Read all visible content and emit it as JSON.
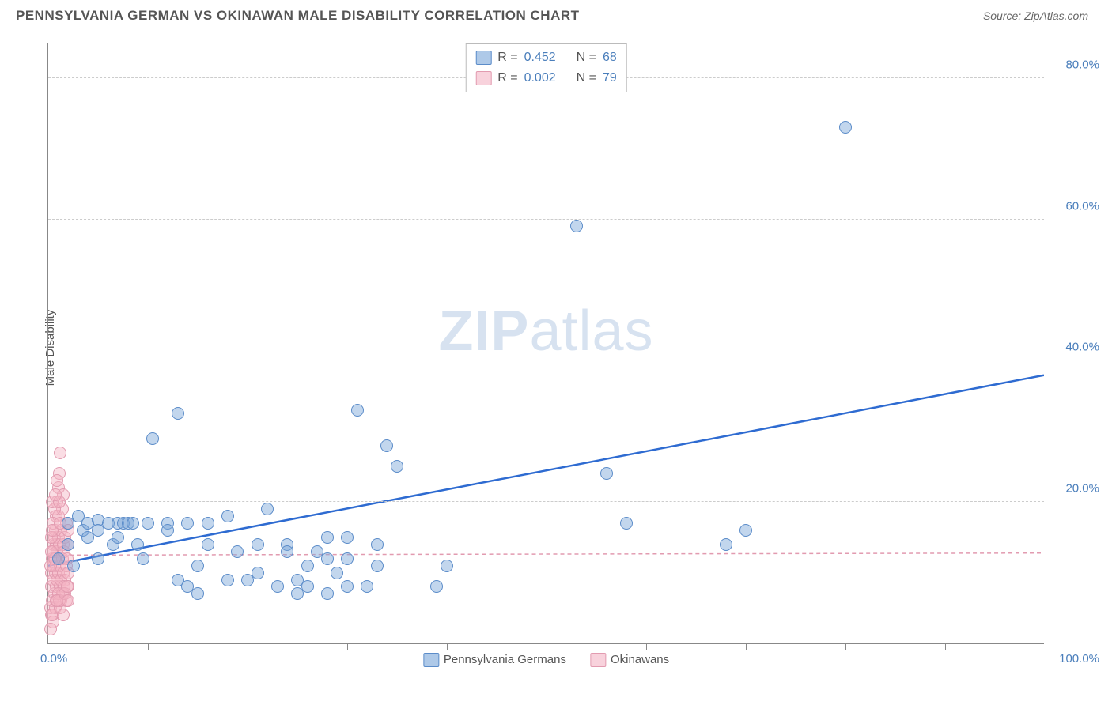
{
  "header": {
    "title": "PENNSYLVANIA GERMAN VS OKINAWAN MALE DISABILITY CORRELATION CHART",
    "source": "Source: ZipAtlas.com"
  },
  "chart": {
    "type": "scatter",
    "ylabel": "Male Disability",
    "watermark_zip": "ZIP",
    "watermark_rest": "atlas",
    "xlim": [
      0,
      100
    ],
    "ylim": [
      0,
      85
    ],
    "xtick_positions": [
      10,
      20,
      30,
      40,
      50,
      60,
      70,
      80,
      90
    ],
    "ytick_labels": [
      {
        "v": 20,
        "label": "20.0%"
      },
      {
        "v": 40,
        "label": "40.0%"
      },
      {
        "v": 60,
        "label": "60.0%"
      },
      {
        "v": 80,
        "label": "80.0%"
      }
    ],
    "x_start_label": "0.0%",
    "x_end_label": "100.0%",
    "grid_color": "#cccccc",
    "background_color": "#ffffff",
    "marker_radius": 8,
    "series": {
      "blue": {
        "name": "Pennsylvania Germans",
        "color_fill": "rgba(120,165,216,0.45)",
        "color_stroke": "#5b8cc9",
        "trend": {
          "x1": 0,
          "y1": 11,
          "x2": 100,
          "y2": 38,
          "stroke": "#2e6bd1",
          "width": 2.5,
          "dash": "none"
        },
        "R": "0.452",
        "N": "68",
        "points": [
          [
            1,
            12
          ],
          [
            2,
            17
          ],
          [
            2,
            14
          ],
          [
            2.5,
            11
          ],
          [
            3,
            18
          ],
          [
            3.5,
            16
          ],
          [
            4,
            17
          ],
          [
            4,
            15
          ],
          [
            5,
            17.5
          ],
          [
            5,
            16
          ],
          [
            5,
            12
          ],
          [
            6,
            17
          ],
          [
            6.5,
            14
          ],
          [
            7,
            17
          ],
          [
            7,
            15
          ],
          [
            7.5,
            17
          ],
          [
            8,
            17
          ],
          [
            8.5,
            17
          ],
          [
            9,
            14
          ],
          [
            9.5,
            12
          ],
          [
            10,
            17
          ],
          [
            10.5,
            29
          ],
          [
            12,
            17
          ],
          [
            12,
            16
          ],
          [
            13,
            9
          ],
          [
            13,
            32.5
          ],
          [
            14,
            17
          ],
          [
            14,
            8
          ],
          [
            15,
            11
          ],
          [
            15,
            7
          ],
          [
            16,
            17
          ],
          [
            16,
            14
          ],
          [
            18,
            9
          ],
          [
            18,
            18
          ],
          [
            19,
            13
          ],
          [
            20,
            9
          ],
          [
            21,
            14
          ],
          [
            21,
            10
          ],
          [
            22,
            19
          ],
          [
            23,
            8
          ],
          [
            24,
            14
          ],
          [
            24,
            13
          ],
          [
            25,
            9
          ],
          [
            25,
            7
          ],
          [
            26,
            11
          ],
          [
            26,
            8
          ],
          [
            27,
            13
          ],
          [
            28,
            7
          ],
          [
            28,
            12
          ],
          [
            28,
            15
          ],
          [
            29,
            10
          ],
          [
            30,
            8
          ],
          [
            30,
            12
          ],
          [
            30,
            15
          ],
          [
            31,
            33
          ],
          [
            32,
            8
          ],
          [
            33,
            14
          ],
          [
            33,
            11
          ],
          [
            34,
            28
          ],
          [
            35,
            25
          ],
          [
            39,
            8
          ],
          [
            40,
            11
          ],
          [
            53,
            59
          ],
          [
            56,
            24
          ],
          [
            58,
            17
          ],
          [
            68,
            14
          ],
          [
            70,
            16
          ],
          [
            80,
            73
          ]
        ]
      },
      "pink": {
        "name": "Okinawans",
        "color_fill": "rgba(244,180,196,0.45)",
        "color_stroke": "#e29bb0",
        "trend": {
          "x1": 0,
          "y1": 12.5,
          "x2": 100,
          "y2": 12.8,
          "stroke": "#e29bb0",
          "width": 1.5,
          "dash": "5,4"
        },
        "R": "0.002",
        "N": "79",
        "points": [
          [
            0.2,
            5
          ],
          [
            0.3,
            8
          ],
          [
            0.3,
            10
          ],
          [
            0.4,
            12
          ],
          [
            0.4,
            6
          ],
          [
            0.5,
            14
          ],
          [
            0.5,
            9
          ],
          [
            0.5,
            11
          ],
          [
            0.5,
            13
          ],
          [
            0.6,
            15
          ],
          [
            0.6,
            7
          ],
          [
            0.7,
            16
          ],
          [
            0.7,
            10
          ],
          [
            0.7,
            12
          ],
          [
            0.8,
            18
          ],
          [
            0.8,
            14
          ],
          [
            0.8,
            8
          ],
          [
            0.8,
            11
          ],
          [
            0.9,
            20
          ],
          [
            0.9,
            13
          ],
          [
            0.9,
            9
          ],
          [
            1,
            22
          ],
          [
            1,
            15
          ],
          [
            1,
            10
          ],
          [
            1,
            12
          ],
          [
            1,
            18
          ],
          [
            1.1,
            24
          ],
          [
            1.1,
            14
          ],
          [
            1.2,
            27
          ],
          [
            1.2,
            11
          ],
          [
            1.2,
            8
          ],
          [
            1.3,
            16
          ],
          [
            1.3,
            9
          ],
          [
            1.4,
            19
          ],
          [
            1.4,
            12
          ],
          [
            1.5,
            10
          ],
          [
            1.5,
            14
          ],
          [
            1.5,
            7
          ],
          [
            1.5,
            21
          ],
          [
            1.6,
            13
          ],
          [
            1.7,
            15
          ],
          [
            1.7,
            9
          ],
          [
            1.8,
            11
          ],
          [
            1.8,
            17
          ],
          [
            1.9,
            12
          ],
          [
            2,
            10
          ],
          [
            2,
            8
          ],
          [
            2,
            14
          ],
          [
            2,
            16
          ],
          [
            0.3,
            4
          ],
          [
            0.5,
            3
          ],
          [
            0.7,
            5
          ],
          [
            0.2,
            2
          ],
          [
            0.4,
            4
          ],
          [
            1.2,
            5
          ],
          [
            1.5,
            4
          ],
          [
            0.6,
            19
          ],
          [
            0.9,
            23
          ],
          [
            0.4,
            20
          ],
          [
            1.1,
            20
          ],
          [
            0.7,
            21
          ],
          [
            1.3,
            6
          ],
          [
            1.4,
            7
          ],
          [
            0.8,
            6
          ],
          [
            1.6,
            8
          ],
          [
            1.8,
            6
          ],
          [
            0.3,
            15
          ],
          [
            0.5,
            17
          ],
          [
            1,
            7
          ],
          [
            1.1,
            6
          ],
          [
            0.2,
            11
          ],
          [
            0.6,
            12
          ],
          [
            0.4,
            16
          ],
          [
            0.9,
            6
          ],
          [
            1.2,
            17
          ],
          [
            1.7,
            7
          ],
          [
            1.9,
            8
          ],
          [
            2,
            6
          ],
          [
            0.3,
            13
          ]
        ]
      }
    },
    "legend_top_rows": [
      {
        "swatch": "b",
        "lblR": "R =",
        "valR": "0.452",
        "lblN": "N =",
        "valN": "68"
      },
      {
        "swatch": "p",
        "lblR": "R =",
        "valR": "0.002",
        "lblN": "N =",
        "valN": "79"
      }
    ],
    "legend_bottom": [
      {
        "swatch": "b",
        "label": "Pennsylvania Germans"
      },
      {
        "swatch": "p",
        "label": "Okinawans"
      }
    ]
  }
}
